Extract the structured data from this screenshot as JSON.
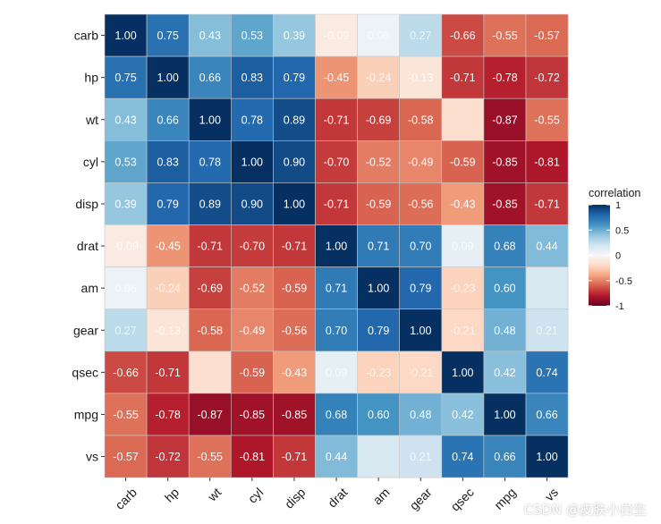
{
  "chart_data": {
    "type": "heatmap",
    "title": "",
    "xlabel": "",
    "ylabel": "",
    "x_categories": [
      "carb",
      "hp",
      "wt",
      "cyl",
      "disp",
      "drat",
      "am",
      "gear",
      "qsec",
      "mpg",
      "vs"
    ],
    "y_categories": [
      "carb",
      "hp",
      "wt",
      "cyl",
      "disp",
      "drat",
      "am",
      "gear",
      "qsec",
      "mpg",
      "vs"
    ],
    "values": [
      [
        1.0,
        0.75,
        0.43,
        0.53,
        0.39,
        -0.09,
        0.06,
        0.27,
        -0.66,
        -0.55,
        -0.57
      ],
      [
        0.75,
        1.0,
        0.66,
        0.83,
        0.79,
        -0.45,
        -0.24,
        -0.13,
        -0.71,
        -0.78,
        -0.72
      ],
      [
        0.43,
        0.66,
        1.0,
        0.78,
        0.89,
        -0.71,
        -0.69,
        -0.58,
        -0.17,
        -0.87,
        -0.55
      ],
      [
        0.53,
        0.83,
        0.78,
        1.0,
        0.9,
        -0.7,
        -0.52,
        -0.49,
        -0.59,
        -0.85,
        -0.81
      ],
      [
        0.39,
        0.79,
        0.89,
        0.9,
        1.0,
        -0.71,
        -0.59,
        -0.56,
        -0.43,
        -0.85,
        -0.71
      ],
      [
        -0.09,
        -0.45,
        -0.71,
        -0.7,
        -0.71,
        1.0,
        0.71,
        0.7,
        0.09,
        0.68,
        0.44
      ],
      [
        0.06,
        -0.24,
        -0.69,
        -0.52,
        -0.59,
        0.71,
        1.0,
        0.79,
        -0.23,
        0.6,
        0.17
      ],
      [
        0.27,
        -0.13,
        -0.58,
        -0.49,
        -0.56,
        0.7,
        0.79,
        1.0,
        -0.21,
        0.48,
        0.21
      ],
      [
        -0.66,
        -0.71,
        -0.17,
        -0.59,
        -0.43,
        0.09,
        -0.23,
        -0.21,
        1.0,
        0.42,
        0.74
      ],
      [
        -0.55,
        -0.78,
        -0.87,
        -0.85,
        -0.85,
        0.68,
        0.6,
        0.48,
        0.42,
        1.0,
        0.66
      ],
      [
        -0.57,
        -0.72,
        -0.55,
        -0.81,
        -0.71,
        0.44,
        0.17,
        0.21,
        0.74,
        0.66,
        1.0
      ]
    ],
    "value_labels": [
      [
        "1.00",
        "0.75",
        "0.43",
        "0.53",
        "0.39",
        "-0.09",
        "0.06",
        "0.27",
        "-0.66",
        "-0.55",
        "-0.57"
      ],
      [
        "0.75",
        "1.00",
        "0.66",
        "0.83",
        "0.79",
        "-0.45",
        "-0.24",
        "-0.13",
        "-0.71",
        "-0.78",
        "-0.72"
      ],
      [
        "0.43",
        "0.66",
        "1.00",
        "0.78",
        "0.89",
        "-0.71",
        "-0.69",
        "-0.58",
        "",
        "-0.87",
        "-0.55"
      ],
      [
        "0.53",
        "0.83",
        "0.78",
        "1.00",
        "0.90",
        "-0.70",
        "-0.52",
        "-0.49",
        "-0.59",
        "-0.85",
        "-0.81"
      ],
      [
        "0.39",
        "0.79",
        "0.89",
        "0.90",
        "1.00",
        "-0.71",
        "-0.59",
        "-0.56",
        "-0.43",
        "-0.85",
        "-0.71"
      ],
      [
        "-0.09",
        "-0.45",
        "-0.71",
        "-0.70",
        "-0.71",
        "1.00",
        "0.71",
        "0.70",
        "0.09",
        "0.68",
        "0.44"
      ],
      [
        "0.06",
        "-0.24",
        "-0.69",
        "-0.52",
        "-0.59",
        "0.71",
        "1.00",
        "0.79",
        "-0.23",
        "0.60",
        ""
      ],
      [
        "0.27",
        "-0.13",
        "-0.58",
        "-0.49",
        "-0.56",
        "0.70",
        "0.79",
        "1.00",
        "-0.21",
        "0.48",
        "0.21"
      ],
      [
        "-0.66",
        "-0.71",
        "",
        "-0.59",
        "-0.43",
        "0.09",
        "-0.23",
        "-0.21",
        "1.00",
        "0.42",
        "0.74"
      ],
      [
        "-0.55",
        "-0.78",
        "-0.87",
        "-0.85",
        "-0.85",
        "0.68",
        "0.60",
        "0.48",
        "0.42",
        "1.00",
        "0.66"
      ],
      [
        "-0.57",
        "-0.72",
        "-0.55",
        "-0.81",
        "-0.71",
        "0.44",
        "",
        "0.21",
        "0.74",
        "0.66",
        "1.00"
      ]
    ],
    "color_scale": {
      "name": "RdBu",
      "domain": [
        -1,
        1
      ],
      "stops": [
        "#67001f",
        "#b2182b",
        "#d6604d",
        "#f4a582",
        "#fddbc7",
        "#f7f7f7",
        "#d1e5f0",
        "#92c5de",
        "#4393c3",
        "#2166ac",
        "#053061"
      ]
    },
    "legend": {
      "title": "correlation",
      "ticks": [
        1,
        0.5,
        0,
        -0.5,
        -1
      ],
      "tick_labels": [
        "1",
        "0.5",
        "0",
        "-0.5",
        "-1"
      ],
      "placement": "right"
    }
  },
  "watermark": "CSDN @皮肤小白生"
}
